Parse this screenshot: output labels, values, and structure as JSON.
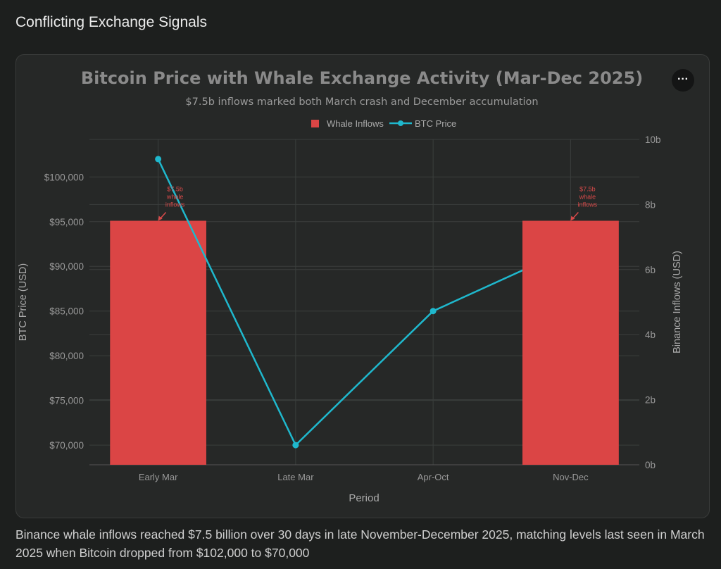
{
  "page": {
    "heading": "Conflicting Exchange Signals",
    "caption": "Binance whale inflows reached $7.5 billion over 30 days in late November-December 2025, matching levels last seen in March 2025 when Bitcoin dropped from $102,000 to $70,000",
    "menu_icon": "ellipsis-icon",
    "menu_label": "···"
  },
  "chart_data": {
    "type": "bar+line",
    "title": "Bitcoin Price with Whale Exchange Activity (Mar-Dec 2025)",
    "subtitle": "$7.5b inflows marked both March crash and December accumulation",
    "xlabel": "Period",
    "ylabel_left": "BTC Price (USD)",
    "ylabel_right": "Binance Inflows (USD)",
    "categories": [
      "Early Mar",
      "Late Mar",
      "Apr-Oct",
      "Nov-Dec"
    ],
    "legend_position": "top-center",
    "grid": true,
    "series": [
      {
        "name": "Whale Inflows",
        "type": "bar",
        "axis": "right",
        "color": "#db4545",
        "values": [
          7.5,
          null,
          null,
          7.5
        ]
      },
      {
        "name": "BTC Price",
        "type": "line",
        "axis": "left",
        "color": "#1fb8cd",
        "values": [
          102000,
          70000,
          85000,
          92000
        ]
      }
    ],
    "ylim_left": [
      67800,
      104200
    ],
    "ylim_right": [
      0,
      10
    ],
    "left_ticks": [
      "$70,000",
      "$75,000",
      "$80,000",
      "$85,000",
      "$90,000",
      "$95,000",
      "$100,000"
    ],
    "left_tick_values": [
      70000,
      75000,
      80000,
      85000,
      90000,
      95000,
      100000
    ],
    "right_ticks": [
      "0b",
      "2b",
      "4b",
      "6b",
      "8b",
      "10b"
    ],
    "right_tick_values": [
      0,
      2,
      4,
      6,
      8,
      10
    ],
    "annotations": [
      {
        "category": "Early Mar",
        "text": [
          "$7.5b",
          "whale",
          "inflows"
        ],
        "value": 7.5
      },
      {
        "category": "Nov-Dec",
        "text": [
          "$7.5b",
          "whale",
          "inflows"
        ],
        "value": 7.5
      }
    ]
  }
}
